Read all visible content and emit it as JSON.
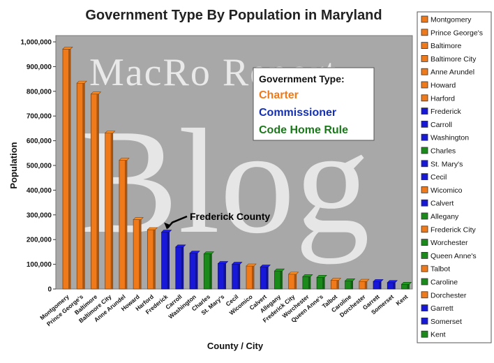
{
  "chart_data": {
    "type": "bar",
    "title": "Government Type By Population in Maryland",
    "xlabel": "County / City",
    "ylabel": "Population",
    "ylim": [
      0,
      1000000
    ],
    "yticks": [
      0,
      100000,
      200000,
      300000,
      400000,
      500000,
      600000,
      700000,
      800000,
      900000,
      1000000
    ],
    "ytick_labels": [
      "0",
      "100,000",
      "200,000",
      "300,000",
      "400,000",
      "500,000",
      "600,000",
      "700,000",
      "800,000",
      "900,000",
      "1,000,000"
    ],
    "grid": false,
    "legend_position": "right",
    "categories": [
      "Montgomery",
      "Prince George's",
      "Baltimore",
      "Baltimore City",
      "Anne Arundel",
      "Howard",
      "Harford",
      "Frederick",
      "Carroll",
      "Washington",
      "Charles",
      "St. Mary's",
      "Cecil",
      "Wicomico",
      "Calvert",
      "Allegany",
      "Frederick City",
      "Worchester",
      "Queen Anne's",
      "Talbot",
      "Caroline",
      "Dorchester",
      "Garrett",
      "Somerset",
      "Kent"
    ],
    "x_tick_labels": [
      "Montgomery",
      "Prince George's",
      "Baltimore",
      "Baltimore City",
      "Anne Arundel",
      "Howard",
      "Harford",
      "Frederick",
      "Carroll",
      "Washington",
      "Charles",
      "St. Mary's",
      "Cecil",
      "Wicomico",
      "Calvert",
      "Allegany",
      "Frederick City",
      "Worchester",
      "Queen Anne's",
      "Talbot",
      "Caroline",
      "Dorchester",
      "Garrett",
      "Somerset",
      "Kent"
    ],
    "legend_labels": [
      "Montgomery",
      "Prince George's",
      "Baltimore",
      "Baltimore City",
      "Anne Arundel",
      "Howard",
      "Harford",
      "Frederick",
      "Carroll",
      "Washington",
      "Charles",
      "St. Mary's",
      "Cecil",
      "Wicomico",
      "Calvert",
      "Allegany",
      "Frederick City",
      "Worchester",
      "Queen Anne's",
      "Talbot",
      "Caroline",
      "Dorchester",
      "Garrett",
      "Somerset",
      "Kent"
    ],
    "values": [
      971000,
      833000,
      789000,
      631000,
      521000,
      281000,
      240000,
      230000,
      170000,
      145000,
      142000,
      103000,
      100000,
      93000,
      89000,
      73000,
      60000,
      50000,
      47000,
      35000,
      33000,
      31000,
      30000,
      26000,
      19000
    ],
    "government_types": [
      "Charter",
      "Charter",
      "Charter",
      "Charter",
      "Charter",
      "Charter",
      "Charter",
      "Commissioner",
      "Commissioner",
      "Commissioner",
      "Code Home Rule",
      "Commissioner",
      "Commissioner",
      "Charter",
      "Commissioner",
      "Code Home Rule",
      "Charter",
      "Code Home Rule",
      "Code Home Rule",
      "Charter",
      "Code Home Rule",
      "Charter",
      "Commissioner",
      "Commissioner",
      "Code Home Rule"
    ],
    "type_colors": {
      "Charter": "#f07a1a",
      "Commissioner": "#1818d8",
      "Code Home Rule": "#1a8a1a"
    },
    "gov_box": {
      "title": "Government Type:",
      "items": [
        {
          "label": "Charter",
          "color": "#f07a1a"
        },
        {
          "label": "Commissioner",
          "color": "#1430b0"
        },
        {
          "label": "Code Home Rule",
          "color": "#1a7a1a"
        }
      ]
    },
    "annotation": {
      "text": "Frederick County",
      "category": "Frederick"
    },
    "watermark": {
      "line1": "MacRo Report",
      "line2": "Blog"
    }
  },
  "colors": {
    "plot_background": "#a8a8a8",
    "page_background": "#ffffff"
  }
}
